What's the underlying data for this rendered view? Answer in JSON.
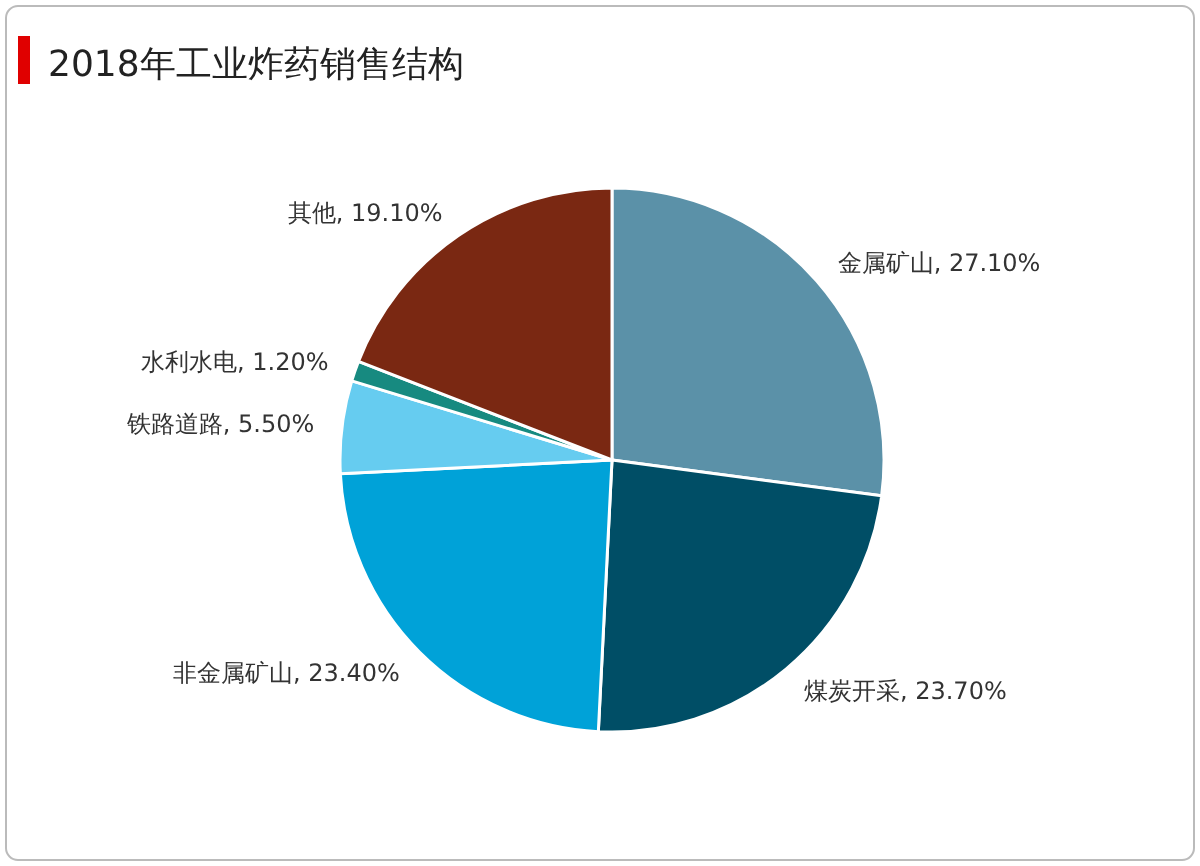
{
  "chart_data": {
    "type": "pie",
    "title": "2018年工业炸药销售结构",
    "categories": [
      "金属矿山",
      "煤炭开采",
      "非金属矿山",
      "铁路道路",
      "水利水电",
      "其他"
    ],
    "values": [
      27.1,
      23.7,
      23.4,
      5.5,
      1.2,
      19.1
    ],
    "value_labels": [
      "27.10%",
      "23.70%",
      "23.40%",
      "5.50%",
      "1.20%",
      "19.10%"
    ],
    "colors": [
      "#5b91a8",
      "#004e66",
      "#00a2d8",
      "#66ccf0",
      "#178a80",
      "#7a2812"
    ]
  }
}
